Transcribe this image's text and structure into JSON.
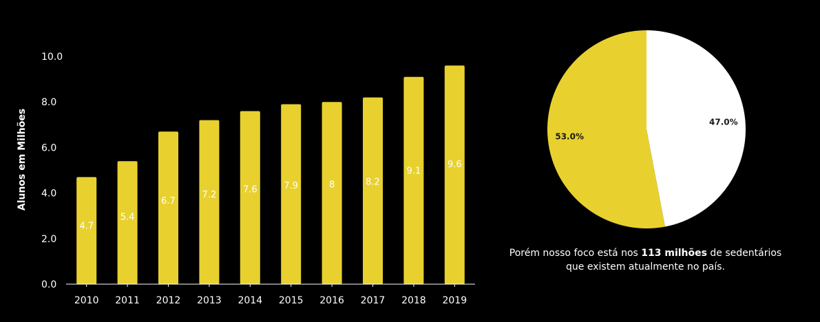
{
  "chart_data": [
    {
      "type": "bar",
      "ylabel": "Alunos em Milhões",
      "ylim": [
        0,
        10
      ],
      "yticks": [
        "0.0",
        "2.0",
        "4.0",
        "6.0",
        "8.0",
        "10.0"
      ],
      "categories": [
        "2010",
        "2011",
        "2012",
        "2013",
        "2014",
        "2015",
        "2016",
        "2017",
        "2018",
        "2019"
      ],
      "values": [
        4.7,
        5.4,
        6.7,
        7.2,
        7.6,
        7.9,
        8,
        8.2,
        9.1,
        9.6
      ],
      "value_labels": [
        "4.7",
        "5.4",
        "6.7",
        "7.2",
        "7.6",
        "7.9",
        "8",
        "8.2",
        "9.1",
        "9.6"
      ],
      "bar_color": "#e8d12f"
    },
    {
      "type": "pie",
      "slices": [
        {
          "label": "47.0%",
          "value": 47.0,
          "color": "#ffffff"
        },
        {
          "label": "53.0%",
          "value": 53.0,
          "color": "#e8d12f"
        }
      ]
    }
  ],
  "caption": {
    "before": "Porém nosso foco está nos ",
    "bold": "113 milhões",
    "after_line1": " de sedentários",
    "line2": "que existem atualmente no país."
  },
  "colors": {
    "background": "#000000",
    "accent": "#e8d12f",
    "text": "#ffffff"
  }
}
